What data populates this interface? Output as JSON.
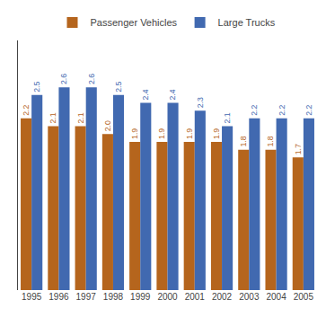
{
  "chart_data": {
    "type": "bar",
    "categories": [
      "1995",
      "1996",
      "1997",
      "1998",
      "1999",
      "2000",
      "2001",
      "2002",
      "2003",
      "2004",
      "2005"
    ],
    "series": [
      {
        "name": "Passenger Vehicles",
        "color": "#B5651D",
        "values": [
          2.2,
          2.1,
          2.1,
          2.0,
          1.9,
          1.9,
          1.9,
          1.9,
          1.8,
          1.8,
          1.7
        ],
        "value_labels": [
          "2.2",
          "2.1",
          "2.1",
          "2.0",
          "1.9",
          "1.9",
          "1.9",
          "1.9",
          "1.8",
          "1.8",
          "1.7"
        ]
      },
      {
        "name": "Large Trucks",
        "color": "#4169B0",
        "values": [
          2.5,
          2.6,
          2.6,
          2.5,
          2.4,
          2.4,
          2.3,
          2.1,
          2.2,
          2.2,
          2.2
        ],
        "value_labels": [
          "2.5",
          "2.6",
          "2.6",
          "2.5",
          "2.4",
          "2.4",
          "2.3",
          "2.1",
          "2.2",
          "2.2",
          "2.2"
        ]
      }
    ],
    "ylim": [
      0,
      3.2
    ],
    "grid": false,
    "legend": "top",
    "data_labels": true,
    "tick_labels": "x"
  }
}
